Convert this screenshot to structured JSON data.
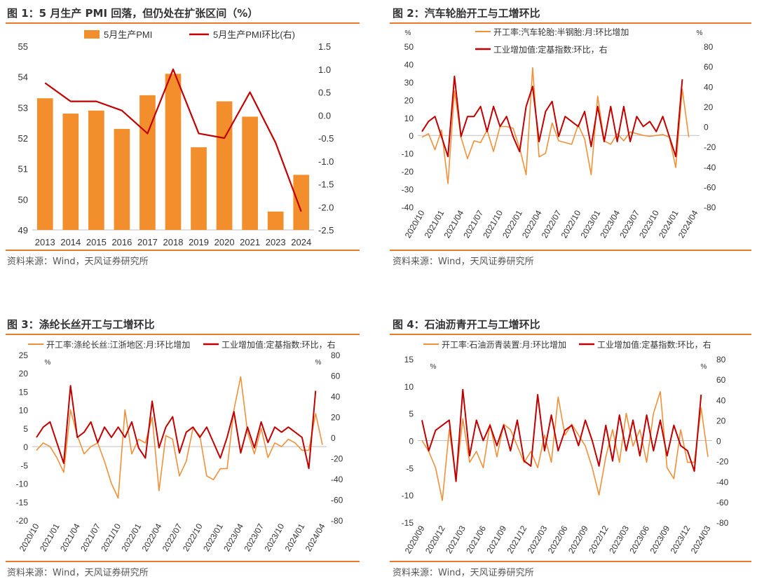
{
  "source_text": "资料来源：Wind，天风证券研究所",
  "colors": {
    "bar": "#f28e2b",
    "dark_red": "#c00000",
    "orange_line": "#f0913a",
    "rule": "#e97a2b",
    "axis_text": "#333333"
  },
  "chart_data": [
    {
      "type": "bar",
      "title": "图 1：5 月生产 PMI 回落，但仍处在扩张区间（%）",
      "categories": [
        "2013",
        "2014",
        "2015",
        "2016",
        "2017",
        "2018",
        "2019",
        "2020",
        "2021",
        "2023",
        "2024"
      ],
      "series": [
        {
          "name": "5月生产PMI",
          "kind": "bar",
          "axis": "left",
          "values": [
            53.3,
            52.8,
            52.9,
            52.3,
            53.4,
            54.1,
            51.7,
            53.2,
            52.7,
            49.6,
            50.8
          ]
        },
        {
          "name": "5月生产PMI环比(右)",
          "kind": "line",
          "axis": "right",
          "values": [
            0.7,
            0.3,
            0.3,
            0.1,
            -0.4,
            1.0,
            -0.4,
            -0.5,
            0.5,
            -0.6,
            -2.1
          ]
        }
      ],
      "ylim": [
        49,
        55
      ],
      "yticks": [
        "55",
        "54",
        "53",
        "52",
        "51",
        "50",
        "49"
      ],
      "y2lim": [
        -2.5,
        1.5
      ],
      "y2ticks": [
        "1.5",
        "1.0",
        "0.5",
        "0.0",
        "-0.5",
        "-1.0",
        "-1.5",
        "-2.0",
        "-2.5"
      ],
      "legend": "top"
    },
    {
      "type": "line",
      "title": "图 2：汽车轮胎开工与工增环比",
      "x": [
        "2020/10",
        "2020/11",
        "2020/12",
        "2021/01",
        "2021/02",
        "2021/03",
        "2021/04",
        "2021/05",
        "2021/06",
        "2021/07",
        "2021/08",
        "2021/09",
        "2021/10",
        "2021/11",
        "2021/12",
        "2022/01",
        "2022/02",
        "2022/03",
        "2022/04",
        "2022/05",
        "2022/06",
        "2022/07",
        "2022/08",
        "2022/09",
        "2022/10",
        "2022/11",
        "2022/12",
        "2023/01",
        "2023/02",
        "2023/03",
        "2023/04",
        "2023/05",
        "2023/06",
        "2023/07",
        "2023/08",
        "2023/09",
        "2023/10",
        "2023/11",
        "2023/12",
        "2024/01",
        "2024/02",
        "2024/03",
        "2024/04"
      ],
      "xticks": [
        "2020/10",
        "2021/01",
        "2021/04",
        "2021/07",
        "2021/10",
        "2022/01",
        "2022/04",
        "2022/07",
        "2022/10",
        "2023/01",
        "2023/04",
        "2023/07",
        "2023/10",
        "2024/01",
        "2024/04"
      ],
      "series": [
        {
          "name": "开工率:汽车轮胎:半钢胎:月:环比增加",
          "axis": "left",
          "values": [
            -1,
            1,
            -8,
            3,
            -27,
            25,
            -1,
            -13,
            -3,
            -4,
            3,
            -9,
            5,
            5,
            4,
            -7,
            -22,
            38,
            -12,
            -10,
            7,
            -3,
            -4,
            -5,
            6,
            -2,
            -22,
            22,
            -3,
            -5,
            1,
            -3,
            2,
            1,
            0,
            -0.5,
            0,
            0.5,
            -1,
            -18,
            26,
            -1,
            null
          ]
        },
        {
          "name": "工业增加值:定基指数:环比，右",
          "axis": "right",
          "values": [
            -5,
            5,
            10,
            -10,
            -30,
            50,
            -10,
            10,
            10,
            20,
            -5,
            20,
            0,
            10,
            -10,
            -25,
            20,
            40,
            -15,
            15,
            25,
            -10,
            10,
            5,
            0,
            15,
            -20,
            20,
            -15,
            20,
            -15,
            20,
            -15,
            10,
            0,
            5,
            -5,
            10,
            -10,
            -30,
            47,
            null,
            null
          ]
        }
      ],
      "ylim": [
        -40,
        50
      ],
      "yticks": [
        "50",
        "40",
        "30",
        "20",
        "10",
        "0",
        "-10",
        "-20",
        "-30",
        "-40"
      ],
      "y2lim": [
        -80,
        80
      ],
      "y2ticks": [
        "80",
        "60",
        "40",
        "20",
        "0",
        "-20",
        "-40",
        "-60",
        "-80"
      ],
      "left_unit": "%",
      "right_unit": "%"
    },
    {
      "type": "line",
      "title": "图 3：涤纶长丝开工与工增环比",
      "x": [
        "2020/10",
        "2020/11",
        "2020/12",
        "2021/01",
        "2021/02",
        "2021/03",
        "2021/04",
        "2021/05",
        "2021/06",
        "2021/07",
        "2021/08",
        "2021/09",
        "2021/10",
        "2021/11",
        "2021/12",
        "2022/01",
        "2022/02",
        "2022/03",
        "2022/04",
        "2022/05",
        "2022/06",
        "2022/07",
        "2022/08",
        "2022/09",
        "2022/10",
        "2022/11",
        "2022/12",
        "2023/01",
        "2023/02",
        "2023/03",
        "2023/04",
        "2023/05",
        "2023/06",
        "2023/07",
        "2023/08",
        "2023/09",
        "2023/10",
        "2023/11",
        "2023/12",
        "2024/01",
        "2024/02",
        "2024/03",
        "2024/04"
      ],
      "xticks": [
        "2020/10",
        "2021/01",
        "2021/04",
        "2021/07",
        "2021/10",
        "2022/01",
        "2022/04",
        "2022/07",
        "2022/10",
        "2023/01",
        "2023/04",
        "2023/07",
        "2023/10",
        "2024/01",
        "2024/04"
      ],
      "series": [
        {
          "name": "开工率:涤纶长丝:江浙地区:月:环比增加",
          "axis": "left",
          "values": [
            -1,
            1,
            0,
            -3,
            -7,
            10,
            3,
            -2,
            0,
            1,
            -4,
            -10,
            -14,
            10,
            -2,
            2,
            1,
            8,
            -12,
            3,
            2,
            -8,
            -4,
            5,
            3,
            -8,
            -9,
            -6,
            -6,
            10,
            19,
            4,
            -2,
            5,
            -3,
            1,
            0,
            2,
            1,
            -1,
            -1,
            9,
            0.5
          ]
        },
        {
          "name": "工业增加值:定基指数:环比，右",
          "axis": "right",
          "values": [
            0,
            10,
            15,
            -5,
            -25,
            50,
            0,
            5,
            15,
            -5,
            10,
            0,
            10,
            0,
            15,
            -10,
            -20,
            35,
            -10,
            10,
            20,
            -15,
            5,
            10,
            0,
            10,
            -5,
            -20,
            0,
            25,
            -15,
            10,
            -10,
            15,
            -5,
            10,
            5,
            10,
            5,
            0,
            -30,
            45,
            null
          ]
        }
      ],
      "ylim": [
        -20,
        25
      ],
      "yticks": [
        "25",
        "20",
        "15",
        "10",
        "5",
        "0",
        "-5",
        "-10",
        "-15",
        "-20"
      ],
      "y2lim": [
        -80,
        80
      ],
      "y2ticks": [
        "80",
        "60",
        "40",
        "20",
        "0",
        "-20",
        "-40",
        "-60",
        "-80"
      ],
      "left_unit": "%",
      "right_unit": "%"
    },
    {
      "type": "line",
      "title": "图 4：石油沥青开工与工增环比",
      "x": [
        "2020/09",
        "2020/10",
        "2020/11",
        "2020/12",
        "2021/01",
        "2021/02",
        "2021/03",
        "2021/04",
        "2021/05",
        "2021/06",
        "2021/07",
        "2021/08",
        "2021/09",
        "2021/10",
        "2021/11",
        "2021/12",
        "2022/01",
        "2022/02",
        "2022/03",
        "2022/04",
        "2022/05",
        "2022/06",
        "2022/07",
        "2022/08",
        "2022/09",
        "2022/10",
        "2022/11",
        "2022/12",
        "2023/01",
        "2023/02",
        "2023/03",
        "2023/04",
        "2023/05",
        "2023/06",
        "2023/07",
        "2023/08",
        "2023/09",
        "2023/10",
        "2023/11",
        "2023/12",
        "2024/01",
        "2024/02",
        "2024/03"
      ],
      "xticks": [
        "2020/09",
        "2020/12",
        "2021/03",
        "2021/06",
        "2021/09",
        "2021/12",
        "2022/03",
        "2022/06",
        "2022/09",
        "2022/12",
        "2023/03",
        "2023/06",
        "2023/09",
        "2023/12",
        "2024/03"
      ],
      "series": [
        {
          "name": "开工率:石油沥青装置:月:环比增加",
          "axis": "left",
          "values": [
            0,
            -2,
            -5,
            -11,
            2,
            -7,
            4,
            -4,
            -2,
            -5,
            3,
            -3,
            3,
            2,
            -1,
            -4,
            -2,
            -5,
            1,
            -4,
            8,
            1,
            3,
            1,
            -1,
            -5,
            -10,
            -3,
            2,
            -4,
            5,
            -1,
            2,
            -4,
            5,
            9,
            -5,
            -7,
            2,
            -4,
            -4,
            6,
            -3
          ]
        },
        {
          "name": "工业增加值:定基指数:环比，右",
          "axis": "right",
          "values": [
            20,
            -10,
            10,
            15,
            20,
            -40,
            50,
            -15,
            20,
            0,
            15,
            -5,
            15,
            -10,
            20,
            -20,
            -25,
            45,
            -10,
            25,
            -10,
            10,
            15,
            -5,
            20,
            0,
            -25,
            15,
            -20,
            25,
            -10,
            20,
            -15,
            25,
            -10,
            20,
            -15,
            15,
            -5,
            -10,
            -30,
            45,
            null
          ]
        }
      ],
      "ylim": [
        -15,
        15
      ],
      "yticks": [
        "15",
        "10",
        "5",
        "0",
        "-5",
        "-10",
        "-15"
      ],
      "y2lim": [
        -80,
        80
      ],
      "y2ticks": [
        "80",
        "60",
        "40",
        "20",
        "0",
        "-20",
        "-40",
        "-60",
        "-80"
      ],
      "left_unit": "%",
      "right_unit": "%"
    }
  ]
}
